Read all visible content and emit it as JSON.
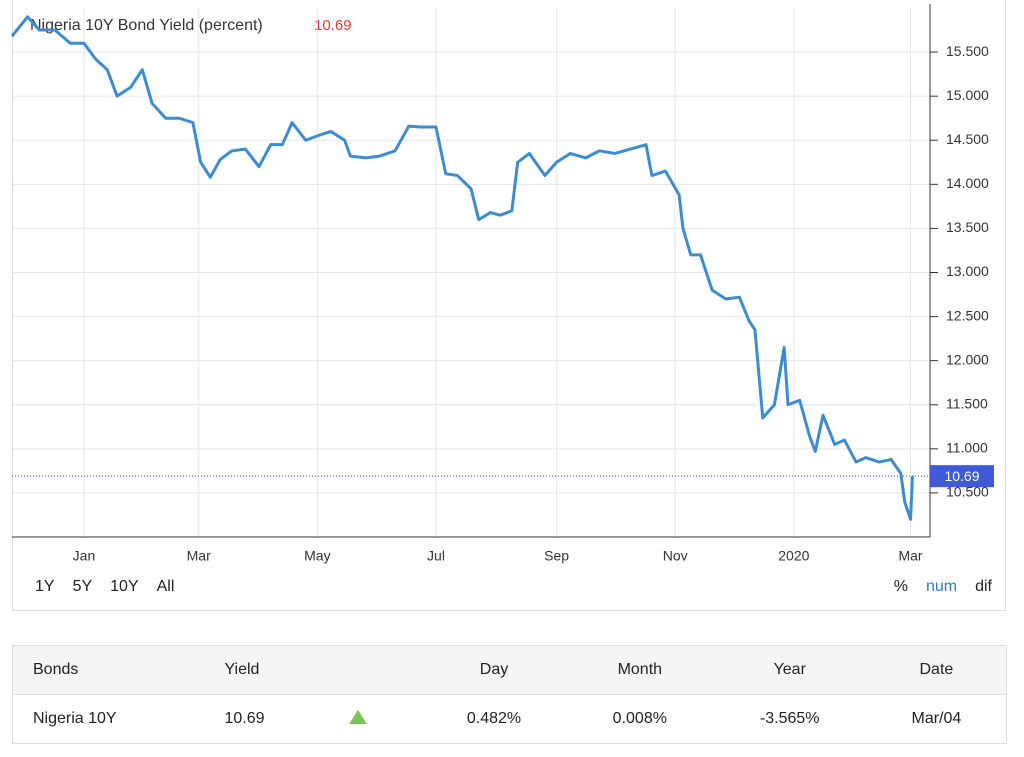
{
  "chart_data": {
    "type": "line",
    "title": "Nigeria 10Y Bond Yield (percent)",
    "last_value": 10.69,
    "x": [
      -37,
      -29,
      -23,
      -15,
      -7,
      0,
      6,
      12,
      17,
      24,
      30,
      35,
      42,
      49,
      56,
      60,
      65,
      70,
      76,
      83,
      90,
      96,
      102,
      107,
      114,
      120,
      127,
      134,
      137,
      145,
      152,
      160,
      167,
      173,
      181,
      186,
      192,
      199,
      203,
      209,
      214,
      220,
      223,
      229,
      237,
      243,
      250,
      258,
      265,
      273,
      281,
      289,
      292,
      299,
      306,
      308,
      312,
      317,
      323,
      330,
      337,
      342,
      345,
      349,
      355,
      360,
      362,
      368,
      373,
      376,
      380,
      386,
      391,
      397,
      402,
      409,
      415,
      420,
      422,
      425,
      426
    ],
    "series": [
      {
        "name": "Nigeria 10Y",
        "color": "#3d8bd0",
        "values": [
          15.68,
          15.9,
          15.75,
          15.75,
          15.6,
          15.6,
          15.42,
          15.3,
          15.0,
          15.1,
          15.3,
          14.92,
          14.75,
          14.75,
          14.7,
          14.25,
          14.08,
          14.28,
          14.38,
          14.4,
          14.2,
          14.45,
          14.45,
          14.7,
          14.5,
          14.55,
          14.6,
          14.5,
          14.32,
          14.3,
          14.32,
          14.38,
          14.66,
          14.65,
          14.65,
          14.12,
          14.1,
          13.95,
          13.6,
          13.68,
          13.65,
          13.7,
          14.25,
          14.35,
          14.1,
          14.25,
          14.35,
          14.3,
          14.38,
          14.35,
          14.4,
          14.45,
          14.1,
          14.15,
          13.88,
          13.5,
          13.2,
          13.2,
          12.8,
          12.7,
          12.72,
          12.45,
          12.35,
          11.35,
          11.5,
          12.15,
          11.5,
          11.55,
          11.15,
          10.97,
          11.38,
          11.05,
          11.1,
          10.85,
          10.9,
          10.85,
          10.88,
          10.72,
          10.4,
          10.2,
          10.69
        ]
      }
    ],
    "xlim": [
      -37,
      435
    ],
    "xticks": [
      {
        "value": 0,
        "label": "Jan"
      },
      {
        "value": 59,
        "label": "Mar"
      },
      {
        "value": 120,
        "label": "May"
      },
      {
        "value": 181,
        "label": "Jul"
      },
      {
        "value": 243,
        "label": "Sep"
      },
      {
        "value": 304,
        "label": "Nov"
      },
      {
        "value": 365,
        "label": "2020"
      },
      {
        "value": 425,
        "label": "Mar"
      }
    ],
    "ylim": [
      10,
      16
    ],
    "yticks": [
      {
        "value": 10.5,
        "label": "10.500"
      },
      {
        "value": 11,
        "label": "11.000"
      },
      {
        "value": 11.5,
        "label": "11.500"
      },
      {
        "value": 12,
        "label": "12.000"
      },
      {
        "value": 12.5,
        "label": "12.500"
      },
      {
        "value": 13,
        "label": "13.000"
      },
      {
        "value": 13.5,
        "label": "13.500"
      },
      {
        "value": 14,
        "label": "14.000"
      },
      {
        "value": 14.5,
        "label": "14.500"
      },
      {
        "value": 15,
        "label": "15.000"
      },
      {
        "value": 15.5,
        "label": "15.500"
      }
    ],
    "grid": true
  },
  "range_buttons": [
    "1Y",
    "5Y",
    "10Y",
    "All"
  ],
  "mode_buttons": [
    "%",
    "num",
    "dif"
  ],
  "active_mode": 1,
  "table": {
    "columns": [
      "Bonds",
      "Yield",
      "Day",
      "Month",
      "Year",
      "Date"
    ],
    "rows": [
      [
        "Nigeria 10Y",
        "10.69",
        "0.482%",
        "0.008%",
        "-3.565%",
        "Mar/04"
      ]
    ]
  }
}
